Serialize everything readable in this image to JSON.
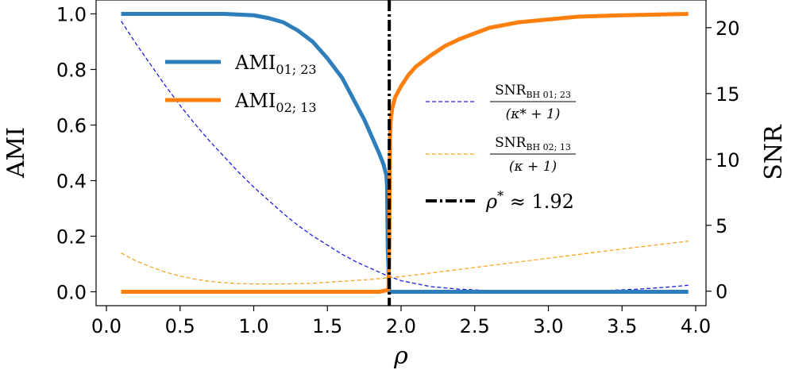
{
  "chart_data": {
    "type": "line",
    "xlabel": "ρ",
    "ylabel_left": "AMI",
    "ylabel_right": "SNR",
    "xlim": [
      -0.07,
      4.07
    ],
    "ylim_left": [
      -0.05,
      1.05
    ],
    "ylim_right": [
      -1.1,
      22.1
    ],
    "xticks": [
      "0.0",
      "0.5",
      "1.0",
      "1.5",
      "2.0",
      "2.5",
      "3.0",
      "3.5",
      "4.0"
    ],
    "yticks_left": [
      "0.0",
      "0.2",
      "0.4",
      "0.6",
      "0.8",
      "1.0"
    ],
    "yticks_right": [
      "0",
      "5",
      "10",
      "15",
      "20"
    ],
    "legend_left_placement": "upper-left",
    "legend_right_placement": "center-right",
    "grid": false,
    "colors": {
      "blue": "#2f7ebc",
      "orange": "#ff7f0e",
      "snr_blue": "#1f1fdc",
      "snr_orange": "#f5a623",
      "vline": "#000000"
    },
    "series": [
      {
        "name": "AMI₀₁;₂₃",
        "legend_main": "AMI",
        "legend_sub": "01; 23",
        "axis": "left",
        "style": "solid",
        "x": [
          0.1,
          0.5,
          0.8,
          1.0,
          1.1,
          1.2,
          1.3,
          1.4,
          1.5,
          1.6,
          1.7,
          1.75,
          1.8,
          1.85,
          1.88,
          1.9,
          1.905,
          1.91,
          1.92,
          1.95,
          2.0,
          2.5,
          3.0,
          3.5,
          3.95
        ],
        "values": [
          1.0,
          1.0,
          1.0,
          0.995,
          0.985,
          0.97,
          0.94,
          0.9,
          0.84,
          0.77,
          0.67,
          0.62,
          0.56,
          0.5,
          0.46,
          0.42,
          0.38,
          0.15,
          0.0,
          0.0,
          0.0,
          0.0,
          0.0,
          0.0,
          0.0
        ]
      },
      {
        "name": "AMI₀₂;₁₃",
        "legend_main": "AMI",
        "legend_sub": "02; 13",
        "axis": "left",
        "style": "solid",
        "x": [
          0.1,
          1.0,
          1.5,
          1.85,
          1.9,
          1.915,
          1.92,
          1.925,
          1.93,
          1.94,
          1.96,
          2.0,
          2.05,
          2.1,
          2.2,
          2.3,
          2.4,
          2.5,
          2.6,
          2.8,
          3.0,
          3.2,
          3.5,
          3.95
        ],
        "values": [
          0.0,
          0.0,
          0.0,
          0.0,
          0.005,
          0.01,
          0.2,
          0.55,
          0.62,
          0.66,
          0.7,
          0.74,
          0.78,
          0.81,
          0.85,
          0.885,
          0.91,
          0.93,
          0.95,
          0.97,
          0.98,
          0.99,
          0.995,
          1.0
        ]
      },
      {
        "name": "SNR_BH 01;23 / (κ* + 1)",
        "legend_num": "SNR",
        "legend_num_sub": "BH 01; 23",
        "legend_den": "(κ* + 1)",
        "axis": "right",
        "style": "dashed",
        "x": [
          0.1,
          0.2,
          0.3,
          0.4,
          0.5,
          0.6,
          0.7,
          0.8,
          0.9,
          1.0,
          1.1,
          1.2,
          1.3,
          1.4,
          1.5,
          1.6,
          1.7,
          1.8,
          1.9,
          2.0,
          2.2,
          2.4,
          2.6,
          2.8,
          3.0,
          3.2,
          3.4,
          3.6,
          3.8,
          3.95
        ],
        "values": [
          20.5,
          18.8,
          17.2,
          15.6,
          14.1,
          12.7,
          11.4,
          10.2,
          9.0,
          7.9,
          6.9,
          5.9,
          5.0,
          4.2,
          3.5,
          2.8,
          2.2,
          1.7,
          1.2,
          0.8,
          0.35,
          0.15,
          0.05,
          0.0,
          0.0,
          0.02,
          0.06,
          0.15,
          0.3,
          0.45
        ]
      },
      {
        "name": "SNR_BH 02;13 / (κ + 1)",
        "legend_num": "SNR",
        "legend_num_sub": "BH 02; 13",
        "legend_den": "(κ + 1)",
        "axis": "right",
        "style": "dashed",
        "x": [
          0.1,
          0.2,
          0.3,
          0.4,
          0.5,
          0.6,
          0.7,
          0.8,
          0.9,
          1.0,
          1.2,
          1.4,
          1.6,
          1.8,
          2.0,
          2.5,
          3.0,
          3.5,
          3.95
        ],
        "values": [
          2.9,
          2.3,
          1.85,
          1.45,
          1.15,
          0.92,
          0.75,
          0.64,
          0.58,
          0.55,
          0.55,
          0.6,
          0.75,
          0.9,
          1.1,
          1.8,
          2.5,
          3.2,
          3.8
        ]
      }
    ],
    "vline": {
      "x": 1.92,
      "label_prefix": "ρ",
      "label_sup": "*",
      "label_suffix": " ≈ 1.92"
    }
  }
}
